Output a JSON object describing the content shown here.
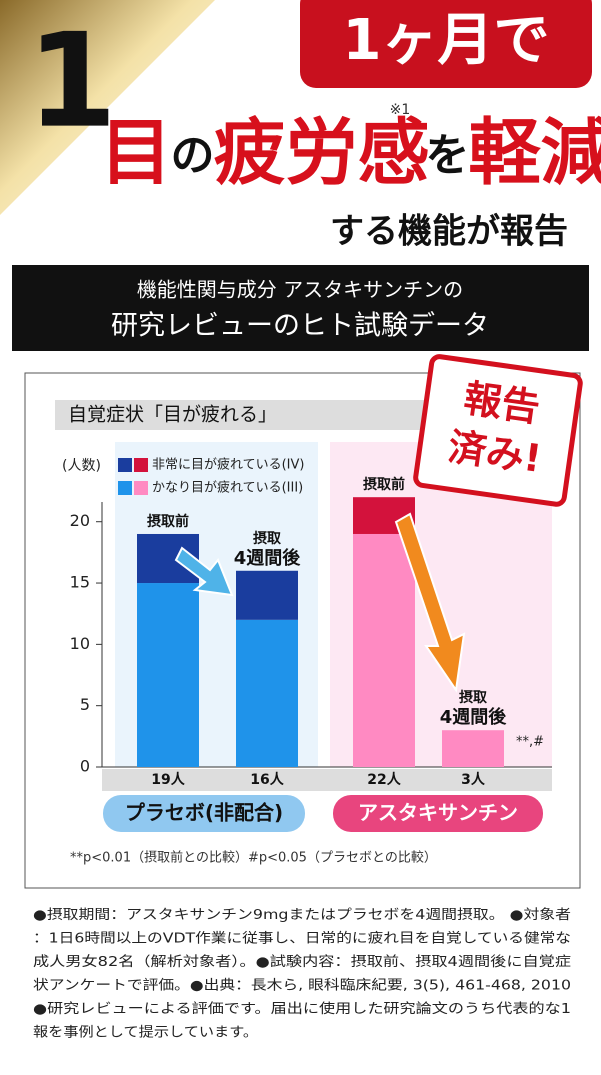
{
  "header": {
    "number": "1",
    "badge": "1ヶ月で",
    "note": "※1",
    "title": [
      {
        "text": "目",
        "color": "#d7101c"
      },
      {
        "text": "の",
        "color": "#111111"
      },
      {
        "text": "疲労感",
        "color": "#d7101c"
      },
      {
        "text": "を",
        "color": "#111111"
      },
      {
        "text": "軽減",
        "color": "#d7101c"
      }
    ],
    "subtitle": "する機能が報告"
  },
  "banner": {
    "line1": "機能性関与成分 アスタキサンチンの",
    "line2": "研究レビューのヒト試験データ"
  },
  "stamp": [
    "報告",
    "済み!"
  ],
  "chart_data": {
    "type": "stacked-bar",
    "title": "自覚症状「目が疲れる」",
    "y_label": "(人数)",
    "categories": [
      [
        "摂取前"
      ],
      [
        "摂取",
        "4週間後"
      ],
      [
        "摂取前"
      ],
      [
        "摂取",
        "4週間後"
      ]
    ],
    "total_labels": [
      "19人",
      "16人",
      "22人",
      "3人"
    ],
    "groups": [
      "プラセボ(非配合)",
      "アスタキサンチン"
    ],
    "series": [
      {
        "name": "非常に目が疲れている(IV)",
        "color": [
          "#1a3d9e",
          "#1a3d9e",
          "#d3123c",
          "#d3123c"
        ],
        "values": [
          4,
          4,
          3,
          0
        ]
      },
      {
        "name": "かなり目が疲れている(III)",
        "color": [
          "#1f93ea",
          "#1f93ea",
          "#ff8ac2",
          "#ff8ac2"
        ],
        "values": [
          15,
          12,
          19,
          3
        ]
      }
    ],
    "annotation": "**,#",
    "footnote": "**p<0.01（摂取前との比較）#p<0.05（プラセボとの比較）",
    "ylim": [
      0,
      26.5
    ],
    "yticks": [
      0,
      5,
      10,
      15,
      20
    ]
  },
  "notes": [
    "●摂取期間：アスタキサンチン9mgまたはプラセボを4週間摂取。 ●対象者",
    "：1日6時間以上のVDT作業に従事し、日常的に疲れ目を自覚している健常な",
    "成人男女82名（解析対象者）。●試験内容：摂取前、摂取4週間後に自覚症",
    "状アンケートで評価。●出典：長木ら, 眼科臨床紀要, 3(5), 461-468, 2010",
    "●研究レビューによる評価です。届出に使用した研究論文のうち代表的な1",
    "報を事例として提示しています。"
  ]
}
